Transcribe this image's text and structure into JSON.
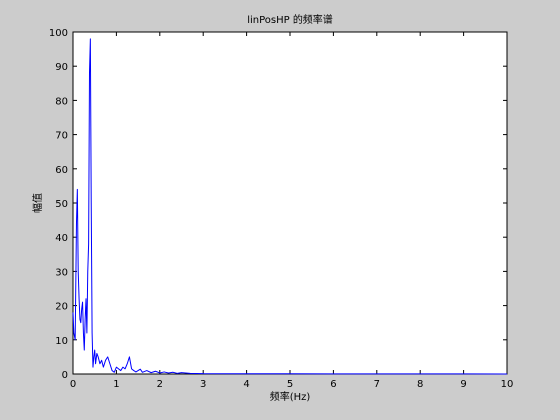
{
  "chart_data": {
    "type": "line",
    "title": "linPosHP 的频率谱",
    "xlabel": "频率(Hz)",
    "ylabel": "幅值",
    "xlim": [
      0,
      10
    ],
    "ylim": [
      0,
      100
    ],
    "x_ticks": [
      0,
      1,
      2,
      3,
      4,
      5,
      6,
      7,
      8,
      9,
      10
    ],
    "y_ticks": [
      0,
      10,
      20,
      30,
      40,
      50,
      60,
      70,
      80,
      90,
      100
    ],
    "grid": false,
    "series": [
      {
        "color": "#0000ff",
        "x": [
          0,
          0.02,
          0.05,
          0.08,
          0.1,
          0.12,
          0.14,
          0.16,
          0.18,
          0.2,
          0.22,
          0.24,
          0.26,
          0.28,
          0.3,
          0.32,
          0.34,
          0.36,
          0.38,
          0.4,
          0.42,
          0.44,
          0.46,
          0.48,
          0.5,
          0.52,
          0.55,
          0.58,
          0.62,
          0.66,
          0.7,
          0.75,
          0.8,
          0.85,
          0.9,
          0.95,
          1.0,
          1.05,
          1.1,
          1.15,
          1.2,
          1.25,
          1.3,
          1.35,
          1.4,
          1.45,
          1.5,
          1.55,
          1.6,
          1.7,
          1.8,
          1.9,
          2.0,
          2.1,
          2.2,
          2.3,
          2.4,
          2.5,
          2.7,
          3.0,
          4.0,
          5.0,
          6.0,
          7.0,
          8.0,
          9.0,
          10.0
        ],
        "y": [
          18,
          12,
          10,
          44,
          54,
          30,
          22,
          16,
          15,
          19,
          21,
          12,
          7,
          16,
          22,
          12,
          30,
          38,
          88,
          98,
          50,
          12,
          2,
          5,
          7,
          3,
          6,
          5,
          3,
          4,
          2,
          4,
          5,
          3,
          1,
          0.5,
          2,
          1.5,
          1,
          2,
          1.5,
          3,
          5,
          1.5,
          1,
          0.6,
          1,
          1.4,
          0.5,
          1,
          0.4,
          0.8,
          0.3,
          0.6,
          0.3,
          0.5,
          0.2,
          0.4,
          0.2,
          0.1,
          0.08,
          0.06,
          0.05,
          0.04,
          0.03,
          0.02,
          0.01
        ]
      }
    ]
  }
}
